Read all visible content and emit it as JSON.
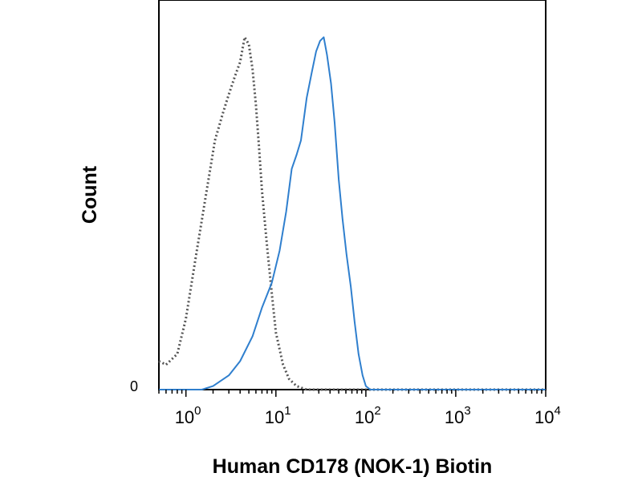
{
  "chart_data": {
    "type": "line",
    "xscale": "log",
    "xlim": [
      0.5,
      10000
    ],
    "ylim": [
      0,
      100
    ],
    "grid": false,
    "legend": "none",
    "xlabel": "Human CD178 (NOK-1) Biotin",
    "ylabel": "Count",
    "y_tick_labels": [
      "0"
    ],
    "x_tick_labels": [
      {
        "base": "10",
        "exp": "0"
      },
      {
        "base": "10",
        "exp": "1"
      },
      {
        "base": "10",
        "exp": "2"
      },
      {
        "base": "10",
        "exp": "3"
      },
      {
        "base": "10",
        "exp": "4"
      }
    ],
    "series": [
      {
        "style": "dotted",
        "color": "#555555",
        "points": [
          [
            0.5,
            8
          ],
          [
            0.6,
            7
          ],
          [
            0.8,
            10
          ],
          [
            1.0,
            20
          ],
          [
            1.3,
            38
          ],
          [
            1.7,
            56
          ],
          [
            2.1,
            70
          ],
          [
            2.6,
            78
          ],
          [
            3.0,
            83
          ],
          [
            3.5,
            88
          ],
          [
            4.0,
            92
          ],
          [
            4.5,
            99
          ],
          [
            5.0,
            97
          ],
          [
            5.5,
            90
          ],
          [
            6.0,
            80
          ],
          [
            6.5,
            68
          ],
          [
            7.0,
            56
          ],
          [
            8.0,
            40
          ],
          [
            9.0,
            27
          ],
          [
            10.0,
            16
          ],
          [
            12.0,
            7
          ],
          [
            14.0,
            3
          ],
          [
            17.0,
            1
          ],
          [
            22.0,
            0
          ],
          [
            10000,
            0
          ]
        ]
      },
      {
        "style": "solid",
        "color": "#2f7fce",
        "points": [
          [
            0.5,
            0
          ],
          [
            1.5,
            0
          ],
          [
            2.0,
            1
          ],
          [
            3.0,
            4
          ],
          [
            4.0,
            8
          ],
          [
            5.5,
            15
          ],
          [
            7.0,
            23
          ],
          [
            9.0,
            30
          ],
          [
            11.0,
            39
          ],
          [
            13.0,
            50
          ],
          [
            15.0,
            62
          ],
          [
            17.0,
            66
          ],
          [
            19.0,
            70
          ],
          [
            22.0,
            82
          ],
          [
            25.0,
            89
          ],
          [
            28.0,
            95
          ],
          [
            31.0,
            98
          ],
          [
            34.0,
            99
          ],
          [
            37.0,
            94
          ],
          [
            41.0,
            86
          ],
          [
            45.0,
            75
          ],
          [
            50.0,
            59
          ],
          [
            55.0,
            48
          ],
          [
            61.0,
            38
          ],
          [
            68.0,
            29
          ],
          [
            75.0,
            19
          ],
          [
            83.0,
            10
          ],
          [
            92.0,
            4
          ],
          [
            100.0,
            1
          ],
          [
            112.0,
            0
          ],
          [
            10000,
            0
          ]
        ]
      }
    ]
  }
}
